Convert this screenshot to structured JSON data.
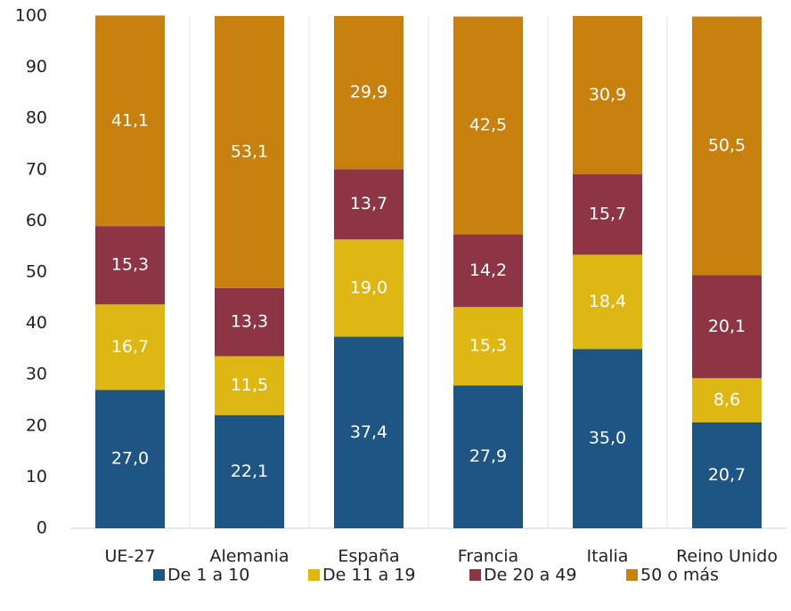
{
  "chart_data": {
    "type": "stacked_bar",
    "categories": [
      "UE-27",
      "Alemania",
      "España",
      "Francia",
      "Italia",
      "Reino Unido"
    ],
    "series": [
      {
        "name": "De 1 a 10",
        "color": "#1f5584",
        "values": [
          27.0,
          22.1,
          37.4,
          27.9,
          35.0,
          20.7
        ],
        "value_labels": [
          "27,0",
          "22,1",
          "37,4",
          "27,9",
          "35,0",
          "20,7"
        ]
      },
      {
        "name": "De 11 a 19",
        "color": "#dfb714",
        "values": [
          16.7,
          11.5,
          19.0,
          15.3,
          18.4,
          8.6
        ],
        "value_labels": [
          "16,7",
          "11,5",
          "19,0",
          "15,3",
          "18,4",
          "8,6"
        ]
      },
      {
        "name": "De 20 a 49",
        "color": "#8d3545",
        "values": [
          15.3,
          13.3,
          13.7,
          14.2,
          15.7,
          20.1
        ],
        "value_labels": [
          "15,3",
          "13,3",
          "13,7",
          "14,2",
          "15,7",
          "20,1"
        ]
      },
      {
        "name": "50 o más",
        "color": "#c8800f",
        "values": [
          41.1,
          53.1,
          29.9,
          42.5,
          30.9,
          50.5
        ],
        "value_labels": [
          "41,1",
          "53,1",
          "29,9",
          "42,5",
          "30,9",
          "50,5"
        ]
      }
    ],
    "ylim": [
      0,
      100
    ],
    "yticks": [
      0,
      10,
      20,
      30,
      40,
      50,
      60,
      70,
      80,
      90,
      100
    ],
    "legend": "bottom"
  }
}
